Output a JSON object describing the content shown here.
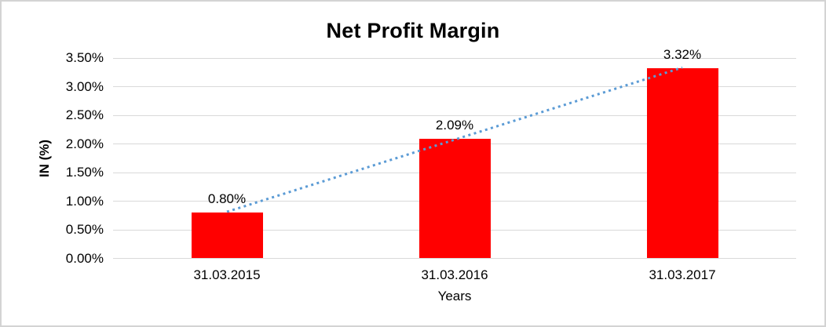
{
  "frame": {
    "border_color": "#D3D3D3",
    "background_color": "#FFFFFF"
  },
  "chart_data": {
    "type": "bar",
    "title": "Net Profit Margin",
    "xlabel": "Years",
    "ylabel": "IN (%)",
    "categories": [
      "31.03.2015",
      "31.03.2016",
      "31.03.2017"
    ],
    "values": [
      0.8,
      2.09,
      3.32
    ],
    "data_labels": [
      "0.80%",
      "2.09%",
      "3.32%"
    ],
    "ylim": [
      0,
      3.5
    ],
    "ytick_values": [
      0,
      0.5,
      1,
      1.5,
      2,
      2.5,
      3,
      3.5
    ],
    "ytick_labels": [
      "0.00%",
      "0.50%",
      "1.00%",
      "1.50%",
      "2.00%",
      "2.50%",
      "3.00%",
      "3.50%"
    ],
    "grid": true,
    "legend": "none",
    "bar_color": "#FF0000",
    "gridline_color": "#D9D9D9",
    "text_color": "#000000",
    "trendline": {
      "type": "linear",
      "style": "dotted",
      "color": "#5B9BD5",
      "spans": "first-bar-top to last-bar-top"
    }
  }
}
